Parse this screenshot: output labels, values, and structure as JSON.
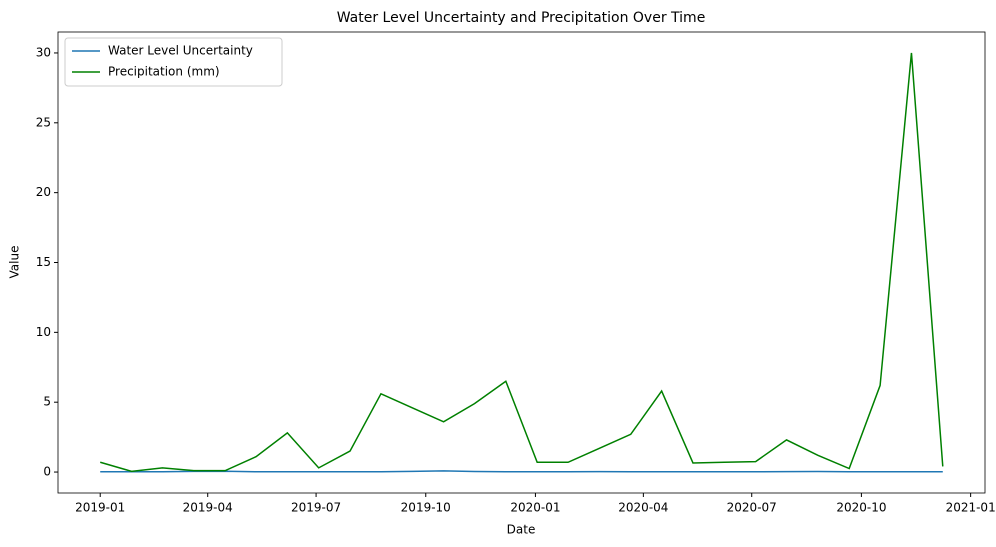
{
  "chart_data": {
    "type": "line",
    "title": "Water Level Uncertainty and Precipitation Over Time",
    "xlabel": "Date",
    "ylabel": "Value",
    "x": [
      2019.0,
      2019.072,
      2019.143,
      2019.215,
      2019.287,
      2019.358,
      2019.43,
      2019.502,
      2019.574,
      2019.645,
      2019.717,
      2019.789,
      2019.86,
      2019.932,
      2020.004,
      2020.075,
      2020.147,
      2020.219,
      2020.29,
      2020.362,
      2020.434,
      2020.506,
      2020.577,
      2020.649,
      2020.721,
      2020.792,
      2020.864,
      2020.936
    ],
    "series": [
      {
        "name": "Water Level Uncertainty",
        "color": "#1f77b4",
        "values": [
          0.02,
          0.02,
          0.02,
          0.05,
          0.06,
          0.02,
          0.02,
          0.02,
          0.02,
          0.02,
          0.05,
          0.08,
          0.04,
          0.02,
          0.02,
          0.02,
          0.03,
          0.02,
          0.02,
          0.02,
          0.02,
          0.02,
          0.03,
          0.04,
          0.02,
          0.02,
          0.02,
          0.02
        ]
      },
      {
        "name": "Precipitation (mm)",
        "color": "#008000",
        "values": [
          0.7,
          0.05,
          0.3,
          0.1,
          0.1,
          1.1,
          2.8,
          0.3,
          1.5,
          5.6,
          4.6,
          3.6,
          4.9,
          6.5,
          0.7,
          0.7,
          1.7,
          2.7,
          5.8,
          0.65,
          0.7,
          0.75,
          2.3,
          1.2,
          0.25,
          6.2,
          30,
          0.4
        ]
      }
    ],
    "xlim": [
      2018.903,
      2021.033
    ],
    "xticks": [
      {
        "value": 2019.0,
        "label": "2019-01"
      },
      {
        "value": 2019.247,
        "label": "2019-04"
      },
      {
        "value": 2019.496,
        "label": "2019-07"
      },
      {
        "value": 2019.748,
        "label": "2019-10"
      },
      {
        "value": 2020.0,
        "label": "2020-01"
      },
      {
        "value": 2020.248,
        "label": "2020-04"
      },
      {
        "value": 2020.497,
        "label": "2020-07"
      },
      {
        "value": 2020.749,
        "label": "2020-10"
      },
      {
        "value": 2021.0,
        "label": "2021-01"
      }
    ],
    "ylim": [
      -1.5,
      31.5
    ],
    "yticks": [
      0,
      5,
      10,
      15,
      20,
      25,
      30
    ],
    "grid": false,
    "legend": "upper left"
  }
}
